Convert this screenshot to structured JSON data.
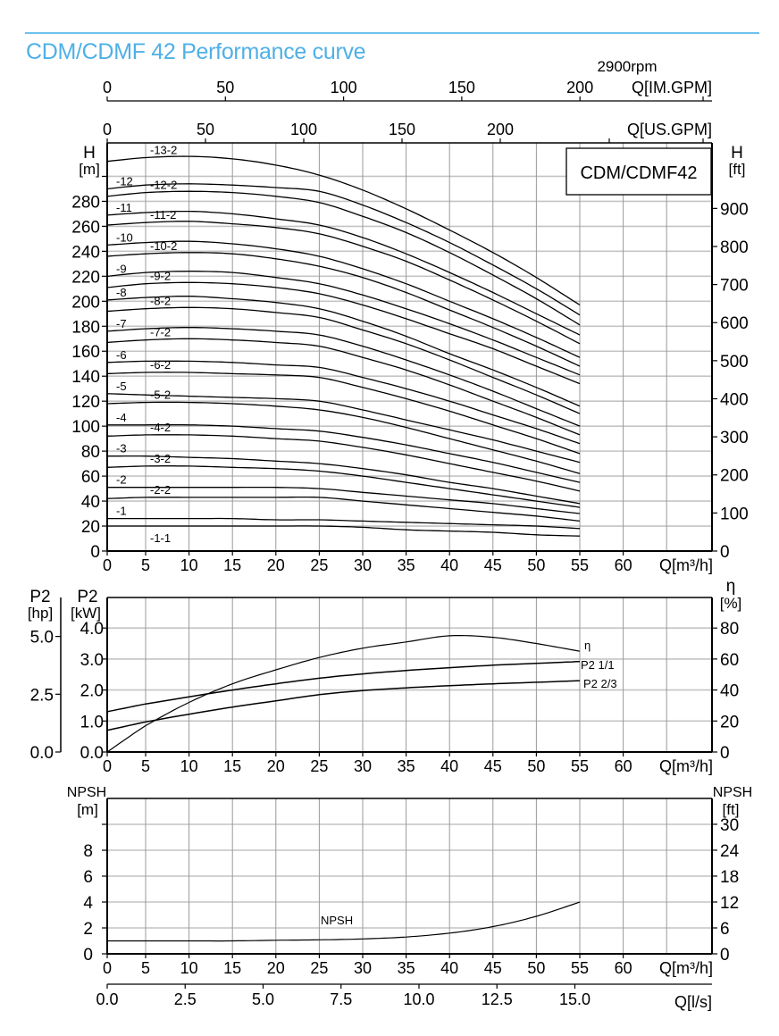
{
  "page": {
    "title": "CDM/CDMF 42 Performance curve",
    "speed": "2900rpm",
    "model_box": "CDM/CDMF42",
    "accent_color": "#4fb0e6"
  },
  "axes": {
    "im_gpm": {
      "label": "Q[IM.GPM]",
      "ticks": [
        "0",
        "50",
        "100",
        "150",
        "200"
      ]
    },
    "us_gpm": {
      "label": "Q[US.GPM]",
      "ticks": [
        "0",
        "50",
        "100",
        "150",
        "200"
      ]
    },
    "q_m3h": {
      "label": "Q[m³/h]",
      "ticks": [
        "0",
        "5",
        "10",
        "15",
        "20",
        "25",
        "30",
        "35",
        "40",
        "45",
        "50",
        "55",
        "60"
      ]
    },
    "q_ls": {
      "label": "Q[l/s]",
      "ticks": [
        "0.0",
        "2.5",
        "5.0",
        "7.5",
        "10.0",
        "12.5",
        "15.0"
      ]
    },
    "h_m": {
      "label_line1": "H",
      "label_line2": "[m]",
      "ticks": [
        "0",
        "20",
        "40",
        "60",
        "80",
        "100",
        "120",
        "140",
        "160",
        "180",
        "200",
        "220",
        "240",
        "260",
        "280"
      ]
    },
    "h_ft": {
      "label_line1": "H",
      "label_line2": "[ft]",
      "ticks": [
        "0",
        "100",
        "200",
        "300",
        "400",
        "500",
        "600",
        "700",
        "800",
        "900"
      ]
    },
    "p2_hp": {
      "label_line1": "P2",
      "label_line2": "[hp]",
      "ticks": [
        "0.0",
        "2.5",
        "5.0"
      ]
    },
    "p2_kw": {
      "label_line1": "P2",
      "label_line2": "[kW]",
      "ticks": [
        "0.0",
        "1.0",
        "2.0",
        "3.0",
        "4.0"
      ]
    },
    "eta": {
      "label_line1": "η",
      "label_line2": "[%]",
      "ticks": [
        "0",
        "20",
        "40",
        "60",
        "80"
      ]
    },
    "npsh_m": {
      "label_line1": "NPSH",
      "label_line2": "[m]",
      "ticks": [
        "0",
        "2",
        "4",
        "6",
        "8"
      ]
    },
    "npsh_ft": {
      "label_line1": "NPSH",
      "label_line2": "[ft]",
      "ticks": [
        "0",
        "6",
        "12",
        "18",
        "24",
        "30"
      ]
    }
  },
  "chart_data": [
    {
      "type": "line",
      "title": "CDM/CDMF 42 Performance curve — Head (2900rpm)",
      "xlabel": "Q[m³/h]",
      "ylabel": "H[m]",
      "secondary_ylabel": "H[ft]",
      "xlim": [
        0,
        70
      ],
      "ylim": [
        0,
        320
      ],
      "grid": true,
      "x": [
        0,
        5,
        10,
        15,
        20,
        25,
        30,
        35,
        40,
        45,
        50,
        55
      ],
      "series": [
        {
          "name": "-13-2",
          "values": [
            312,
            315,
            316,
            314,
            309,
            301,
            289,
            274,
            257,
            239,
            219,
            197
          ]
        },
        {
          "name": "-12",
          "values": [
            290,
            293,
            294,
            293,
            291,
            288,
            277,
            263,
            247,
            229,
            210,
            189
          ]
        },
        {
          "name": "-12-2",
          "values": [
            284,
            287,
            288,
            287,
            284,
            279,
            268,
            255,
            239,
            221,
            202,
            181
          ]
        },
        {
          "name": "-11",
          "values": [
            269,
            271,
            272,
            270,
            266,
            261,
            251,
            238,
            223,
            207,
            190,
            173
          ]
        },
        {
          "name": "-11-2",
          "values": [
            261,
            263,
            264,
            262,
            259,
            254,
            244,
            232,
            217,
            201,
            184,
            166
          ]
        },
        {
          "name": "-10",
          "values": [
            245,
            247,
            248,
            246,
            242,
            236,
            226,
            214,
            200,
            186,
            171,
            155
          ]
        },
        {
          "name": "-10-2",
          "values": [
            236,
            238,
            239,
            238,
            234,
            228,
            219,
            207,
            193,
            179,
            164,
            148
          ]
        },
        {
          "name": "-9",
          "values": [
            220,
            223,
            224,
            223,
            219,
            214,
            205,
            194,
            182,
            169,
            155,
            141
          ]
        },
        {
          "name": "-9-2",
          "values": [
            211,
            214,
            215,
            214,
            211,
            206,
            197,
            186,
            174,
            162,
            148,
            134
          ]
        },
        {
          "name": "-8",
          "values": [
            201,
            203,
            204,
            202,
            199,
            194,
            184,
            172,
            158,
            145,
            131,
            116
          ]
        },
        {
          "name": "-8-2",
          "values": [
            192,
            194,
            195,
            194,
            191,
            187,
            177,
            166,
            153,
            139,
            125,
            110
          ]
        },
        {
          "name": "-7",
          "values": [
            176,
            178,
            179,
            178,
            176,
            173,
            164,
            153,
            141,
            128,
            114,
            100
          ]
        },
        {
          "name": "-7-2",
          "values": [
            167,
            169,
            170,
            169,
            167,
            164,
            155,
            145,
            133,
            120,
            107,
            93
          ]
        },
        {
          "name": "-6",
          "values": [
            151,
            152,
            152,
            151,
            149,
            147,
            139,
            130,
            120,
            109,
            98,
            86
          ]
        },
        {
          "name": "-6-2",
          "values": [
            142,
            143,
            143,
            142,
            141,
            139,
            131,
            122,
            112,
            101,
            90,
            78
          ]
        },
        {
          "name": "-5",
          "values": [
            126,
            125,
            124,
            123,
            122,
            120,
            113,
            105,
            97,
            89,
            80,
            71
          ]
        },
        {
          "name": "-5-2",
          "values": [
            118,
            119,
            119,
            118,
            116,
            113,
            107,
            99,
            90,
            81,
            72,
            62
          ]
        },
        {
          "name": "-4",
          "values": [
            101,
            101,
            101,
            100,
            98,
            96,
            91,
            85,
            78,
            71,
            63,
            55
          ]
        },
        {
          "name": "-4-2",
          "values": [
            92,
            93,
            93,
            92,
            90,
            88,
            83,
            77,
            70,
            63,
            56,
            48
          ]
        },
        {
          "name": "-3",
          "values": [
            76,
            76,
            75,
            74,
            72,
            70,
            66,
            61,
            55,
            50,
            44,
            38
          ]
        },
        {
          "name": "-3-2",
          "values": [
            67,
            68,
            68,
            67,
            66,
            64,
            60,
            55,
            50,
            45,
            40,
            35
          ]
        },
        {
          "name": "-2",
          "values": [
            51,
            51,
            51,
            51,
            51,
            50,
            47,
            44,
            41,
            38,
            34,
            30
          ]
        },
        {
          "name": "-2-2",
          "values": [
            42,
            43,
            43,
            43,
            43,
            43,
            40,
            37,
            34,
            31,
            28,
            24
          ]
        },
        {
          "name": "-1",
          "values": [
            26,
            26,
            26,
            26,
            25,
            25,
            24,
            23,
            22,
            21,
            20,
            18
          ]
        },
        {
          "name": "-1-1",
          "values": [
            20,
            20,
            20,
            20,
            20,
            20,
            19,
            17,
            16,
            15,
            13,
            12
          ]
        }
      ]
    },
    {
      "type": "line",
      "title": "Power and Efficiency",
      "xlabel": "Q[m³/h]",
      "ylabel": "P2[kW]",
      "secondary_ylabel": "η[%]",
      "extra_ylabel": "P2[hp]",
      "xlim": [
        0,
        70
      ],
      "ylim": [
        0,
        4.8
      ],
      "grid": true,
      "x": [
        0,
        5,
        10,
        15,
        20,
        25,
        30,
        35,
        40,
        45,
        50,
        55
      ],
      "series": [
        {
          "name": "η",
          "axis": "η[%]",
          "values": [
            0,
            17,
            32,
            44,
            53,
            61,
            67,
            71,
            75,
            74,
            70,
            65
          ]
        },
        {
          "name": "P2 1/1",
          "axis": "P2[kW]",
          "values": [
            1.3,
            1.55,
            1.78,
            2.0,
            2.2,
            2.38,
            2.52,
            2.63,
            2.72,
            2.8,
            2.86,
            2.92
          ]
        },
        {
          "name": "P2 2/3",
          "axis": "P2[kW]",
          "values": [
            0.7,
            0.97,
            1.22,
            1.45,
            1.65,
            1.85,
            1.98,
            2.07,
            2.14,
            2.2,
            2.25,
            2.3
          ]
        }
      ]
    },
    {
      "type": "line",
      "title": "NPSH",
      "xlabel": "Q[m³/h]",
      "ylabel": "NPSH[m]",
      "secondary_ylabel": "NPSH[ft]",
      "xlim": [
        0,
        70
      ],
      "ylim": [
        0,
        11
      ],
      "grid": true,
      "x": [
        0,
        5,
        10,
        15,
        20,
        25,
        30,
        35,
        40,
        45,
        50,
        55
      ],
      "series": [
        {
          "name": "NPSH",
          "values": [
            1.0,
            1.0,
            1.0,
            1.0,
            1.05,
            1.08,
            1.15,
            1.3,
            1.6,
            2.1,
            2.9,
            4.0
          ]
        }
      ]
    }
  ],
  "labels": {
    "eta_curve": "η",
    "p2_full": "P2 1/1",
    "p2_two_thirds": "P2 2/3",
    "npsh_curve": "NPSH"
  }
}
